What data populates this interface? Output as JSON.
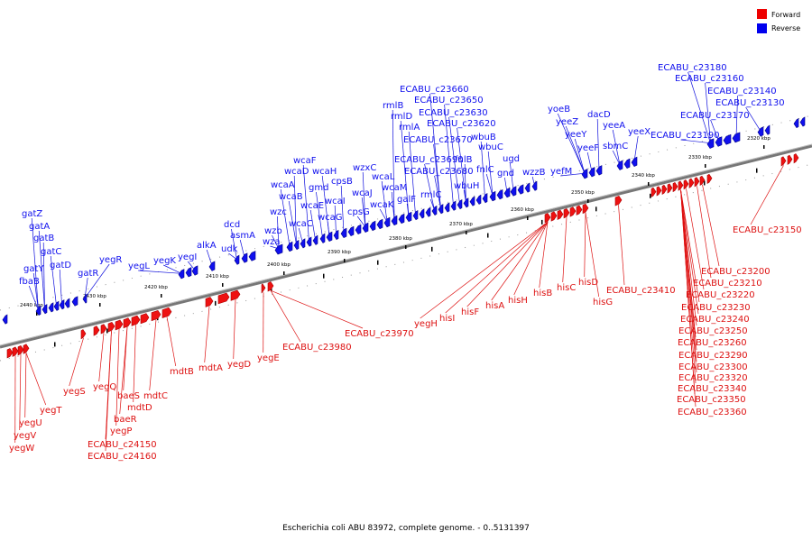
{
  "legend": {
    "forward": {
      "label": "Forward",
      "color": "#ee0000"
    },
    "reverse": {
      "label": "Reverse",
      "color": "#0000ee"
    }
  },
  "caption": "Escherichia coli ABU 83972, complete genome. - 0..5131397",
  "colors": {
    "forward_gene": "#ee1111",
    "forward_gene_shade": "#aa0000",
    "reverse_gene": "#1010ee",
    "reverse_gene_shade": "#000088",
    "backbone": "#888888",
    "forward_label": "#dd1111",
    "reverse_label": "#1010dd"
  },
  "ticks": [
    "2440 kbp",
    "2430 kbp",
    "2420 kbp",
    "2410 kbp",
    "2400 kbp",
    "2390 kbp",
    "2380 kbp",
    "2370 kbp",
    "2360 kbp",
    "2350 kbp",
    "2340 kbp",
    "2330 kbp",
    "2320 kbp"
  ],
  "reverse_labels": [
    "gatZ",
    "gatA",
    "gatB",
    "gatC",
    "gatY",
    "gatD",
    "fbaB",
    "gatR",
    "yegR",
    "yegL",
    "yegK",
    "yegI",
    "alkA",
    "dcd",
    "asmA",
    "udk",
    "wzb",
    "wza",
    "wzc",
    "wcaC",
    "wcaB",
    "wcaA",
    "wcaD",
    "wcaF",
    "wcaE",
    "wcaH",
    "wcaI",
    "wcaG",
    "gmd",
    "cpsB",
    "cpsG",
    "wcaJ",
    "wzxC",
    "wcaL",
    "wcaK",
    "wcaM",
    "galF",
    "rmlB",
    "rmlD",
    "rmlA",
    "rmlC",
    "ECABU_c23660",
    "ECABU_c23650",
    "ECABU_c23630",
    "ECABU_c23620",
    "ECABU_c23670",
    "ECABU_c23690",
    "ECABU_c23680",
    "fnlB",
    "fnlC",
    "wbuB",
    "wbuC",
    "wbuH",
    "ugd",
    "gnd",
    "wzzB",
    "yefM",
    "yoeB",
    "yeeZ",
    "yeeY",
    "yeeF",
    "dacD",
    "sbmC",
    "yeeA",
    "yeeX",
    "ECABU_c23190",
    "ECABU_c23180",
    "ECABU_c23160",
    "ECABU_c23140",
    "ECABU_c23130",
    "ECABU_c23170"
  ],
  "forward_labels": [
    "yegS",
    "yegT",
    "yegU",
    "yegV",
    "yegW",
    "yegQ",
    "baeS",
    "baeR",
    "yegP",
    "ECABU_c24150",
    "ECABU_c24160",
    "mdtC",
    "mdtD",
    "mdtB",
    "mdtA",
    "yegD",
    "yegE",
    "ECABU_c23980",
    "ECABU_c23970",
    "yegH",
    "hisI",
    "hisF",
    "hisA",
    "hisH",
    "hisB",
    "hisC",
    "hisD",
    "hisG",
    "ECABU_c23410",
    "ECABU_c23150",
    "ECABU_c23200",
    "ECABU_c23210",
    "ECABU_c23220",
    "ECABU_c23230",
    "ECABU_c23240",
    "ECABU_c23250",
    "ECABU_c23260",
    "ECABU_c23290",
    "ECABU_c23300",
    "ECABU_c23320",
    "ECABU_c23340",
    "ECABU_c23350",
    "ECABU_c23360"
  ]
}
